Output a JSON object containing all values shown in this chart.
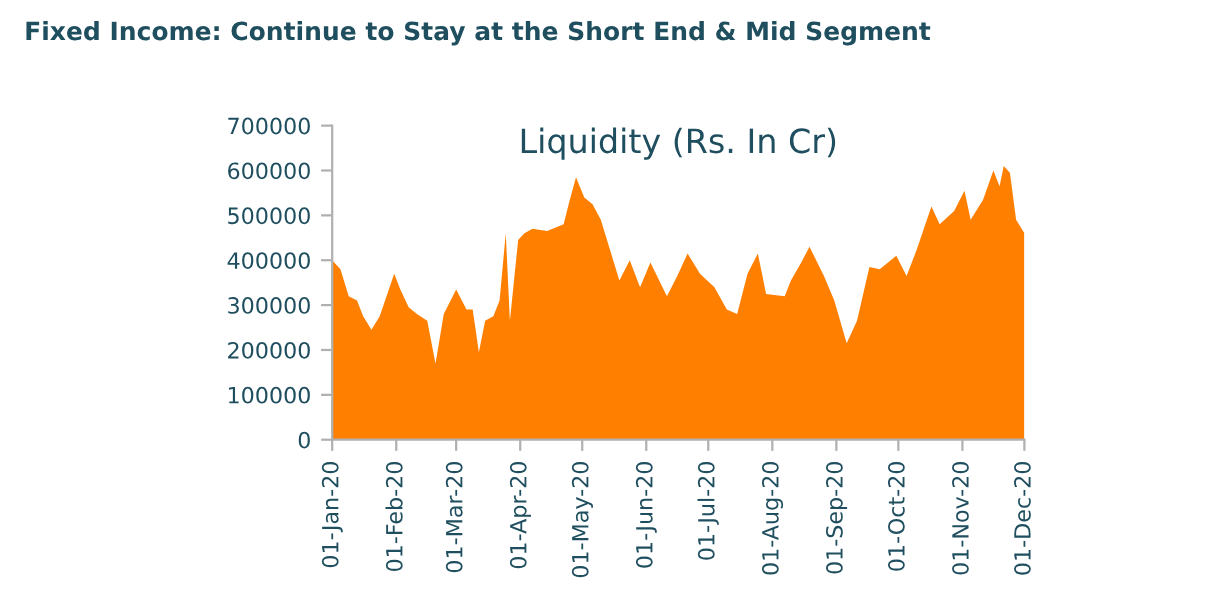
{
  "chart_data": {
    "type": "area",
    "title": "Liquidity (Rs. In Cr)",
    "subtitle": "Fixed Income: Continue to Stay at the Short End & Mid Segment",
    "x": [
      "2020-01-01",
      "2020-01-05",
      "2020-01-09",
      "2020-01-13",
      "2020-01-16",
      "2020-01-20",
      "2020-01-24",
      "2020-01-31",
      "2020-02-03",
      "2020-02-07",
      "2020-02-11",
      "2020-02-16",
      "2020-02-20",
      "2020-02-24",
      "2020-03-01",
      "2020-03-06",
      "2020-03-09",
      "2020-03-12",
      "2020-03-15",
      "2020-03-19",
      "2020-03-22",
      "2020-03-25",
      "2020-03-27",
      "2020-03-31",
      "2020-04-03",
      "2020-04-07",
      "2020-04-14",
      "2020-04-22",
      "2020-04-25",
      "2020-04-28",
      "2020-05-02",
      "2020-05-06",
      "2020-05-10",
      "2020-05-13",
      "2020-05-19",
      "2020-05-24",
      "2020-05-29",
      "2020-06-03",
      "2020-06-11",
      "2020-06-16",
      "2020-06-21",
      "2020-06-27",
      "2020-07-04",
      "2020-07-10",
      "2020-07-15",
      "2020-07-20",
      "2020-07-25",
      "2020-07-29",
      "2020-08-07",
      "2020-08-10",
      "2020-08-15",
      "2020-08-19",
      "2020-08-26",
      "2020-08-31",
      "2020-09-06",
      "2020-09-11",
      "2020-09-17",
      "2020-09-22",
      "2020-09-30",
      "2020-10-05",
      "2020-10-10",
      "2020-10-17",
      "2020-10-21",
      "2020-10-28",
      "2020-11-02",
      "2020-11-05",
      "2020-11-11",
      "2020-11-16",
      "2020-11-19",
      "2020-11-21",
      "2020-11-24",
      "2020-11-27",
      "2020-12-01"
    ],
    "series": [
      {
        "color": "#ff8000",
        "values": [
          400000,
          380000,
          320000,
          310000,
          275000,
          245000,
          275000,
          370000,
          335000,
          295000,
          280000,
          265000,
          170000,
          280000,
          335000,
          290000,
          290000,
          195000,
          265000,
          275000,
          310000,
          460000,
          265000,
          445000,
          460000,
          470000,
          465000,
          480000,
          535000,
          585000,
          540000,
          525000,
          490000,
          445000,
          355000,
          400000,
          340000,
          395000,
          320000,
          365000,
          415000,
          370000,
          340000,
          290000,
          280000,
          370000,
          415000,
          325000,
          320000,
          355000,
          395000,
          430000,
          365000,
          310000,
          215000,
          265000,
          385000,
          380000,
          410000,
          365000,
          425000,
          520000,
          480000,
          510000,
          555000,
          490000,
          535000,
          600000,
          565000,
          610000,
          595000,
          490000,
          460000
        ]
      }
    ],
    "xlim": [
      "2020-01-01",
      "2020-12-01"
    ],
    "xticks": [
      {
        "value": "2020-01-01",
        "label": "01-Jan-20"
      },
      {
        "value": "2020-02-01",
        "label": "01-Feb-20"
      },
      {
        "value": "2020-03-01",
        "label": "01-Mar-20"
      },
      {
        "value": "2020-04-01",
        "label": "01-Apr-20"
      },
      {
        "value": "2020-05-01",
        "label": "01-May-20"
      },
      {
        "value": "2020-06-01",
        "label": "01-Jun-20"
      },
      {
        "value": "2020-07-01",
        "label": "01-Jul-20"
      },
      {
        "value": "2020-08-01",
        "label": "01-Aug-20"
      },
      {
        "value": "2020-09-01",
        "label": "01-Sep-20"
      },
      {
        "value": "2020-10-01",
        "label": "01-Oct-20"
      },
      {
        "value": "2020-11-01",
        "label": "01-Nov-20"
      },
      {
        "value": "2020-12-01",
        "label": "01-Dec-20"
      }
    ],
    "ylim": [
      0,
      700000
    ],
    "yticks": [
      0,
      100000,
      200000,
      300000,
      400000,
      500000,
      600000,
      700000
    ],
    "grid": false,
    "legend": false
  }
}
